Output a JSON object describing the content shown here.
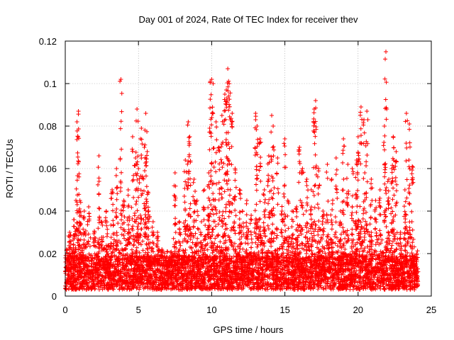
{
  "chart_data": {
    "type": "scatter",
    "title": "Day 001 of 2024, Rate Of TEC Index for receiver thev",
    "xlabel": "GPS time / hours",
    "ylabel": "ROTI / TECUs",
    "xlim": [
      0,
      25
    ],
    "ylim": [
      0,
      0.12
    ],
    "xticks": [
      0,
      5,
      10,
      15,
      20,
      25
    ],
    "xtick_labels": [
      "0",
      "5",
      "10",
      "15",
      "20",
      "25"
    ],
    "yticks": [
      0,
      0.02,
      0.04,
      0.06,
      0.08,
      0.1,
      0.12
    ],
    "ytick_labels": [
      "0",
      "0.02",
      "0.04",
      "0.06",
      "0.08",
      "0.1",
      "0.12"
    ],
    "grid": true,
    "marker": "+",
    "marker_color": "#ff0000",
    "series": [
      {
        "name": "ROTI",
        "x": [
          0.1,
          0.3,
          0.6,
          0.8,
          0.9,
          1.0,
          1.3,
          1.6,
          2.0,
          2.3,
          2.5,
          2.8,
          3.2,
          3.5,
          3.8,
          4.0,
          4.3,
          4.6,
          4.8,
          4.9,
          5.0,
          5.2,
          5.4,
          5.5,
          5.6,
          5.7,
          6.0,
          6.3,
          6.6,
          7.0,
          7.3,
          7.5,
          7.8,
          8.2,
          8.4,
          8.5,
          8.8,
          9.0,
          9.3,
          9.5,
          9.8,
          9.9,
          10.0,
          10.1,
          10.3,
          10.5,
          10.7,
          10.9,
          11.0,
          11.1,
          11.2,
          11.4,
          11.6,
          11.9,
          12.1,
          12.4,
          12.7,
          13.0,
          13.1,
          13.3,
          13.6,
          13.9,
          14.1,
          14.2,
          14.5,
          14.8,
          15.0,
          15.2,
          15.5,
          15.8,
          16.0,
          16.2,
          16.5,
          16.8,
          17.0,
          17.1,
          17.3,
          17.6,
          17.9,
          18.2,
          18.5,
          18.8,
          19.0,
          19.3,
          19.6,
          19.9,
          20.0,
          20.2,
          20.4,
          20.6,
          20.9,
          21.2,
          21.5,
          21.8,
          21.9,
          22.1,
          22.3,
          22.4,
          22.6,
          22.9,
          23.2,
          23.3,
          23.5,
          23.7,
          24.0
        ],
        "y": [
          0.022,
          0.03,
          0.036,
          0.082,
          0.087,
          0.045,
          0.04,
          0.042,
          0.03,
          0.066,
          0.035,
          0.04,
          0.05,
          0.06,
          0.102,
          0.045,
          0.05,
          0.075,
          0.065,
          0.088,
          0.06,
          0.079,
          0.07,
          0.086,
          0.068,
          0.04,
          0.035,
          0.03,
          0.022,
          0.015,
          0.02,
          0.058,
          0.035,
          0.064,
          0.082,
          0.075,
          0.055,
          0.045,
          0.035,
          0.05,
          0.058,
          0.101,
          0.102,
          0.1,
          0.082,
          0.07,
          0.085,
          0.095,
          0.097,
          0.107,
          0.1,
          0.086,
          0.06,
          0.05,
          0.04,
          0.045,
          0.038,
          0.086,
          0.08,
          0.074,
          0.05,
          0.066,
          0.085,
          0.08,
          0.065,
          0.04,
          0.074,
          0.045,
          0.04,
          0.042,
          0.07,
          0.06,
          0.055,
          0.05,
          0.088,
          0.092,
          0.06,
          0.04,
          0.062,
          0.055,
          0.065,
          0.04,
          0.074,
          0.062,
          0.06,
          0.064,
          0.075,
          0.089,
          0.083,
          0.087,
          0.055,
          0.045,
          0.05,
          0.08,
          0.115,
          0.055,
          0.06,
          0.075,
          0.068,
          0.03,
          0.05,
          0.086,
          0.081,
          0.061,
          0.02
        ]
      }
    ],
    "background": {
      "density_per_hour": 220,
      "floor_min": 0.003,
      "floor_typical": 0.012,
      "band_max": 0.045
    }
  }
}
